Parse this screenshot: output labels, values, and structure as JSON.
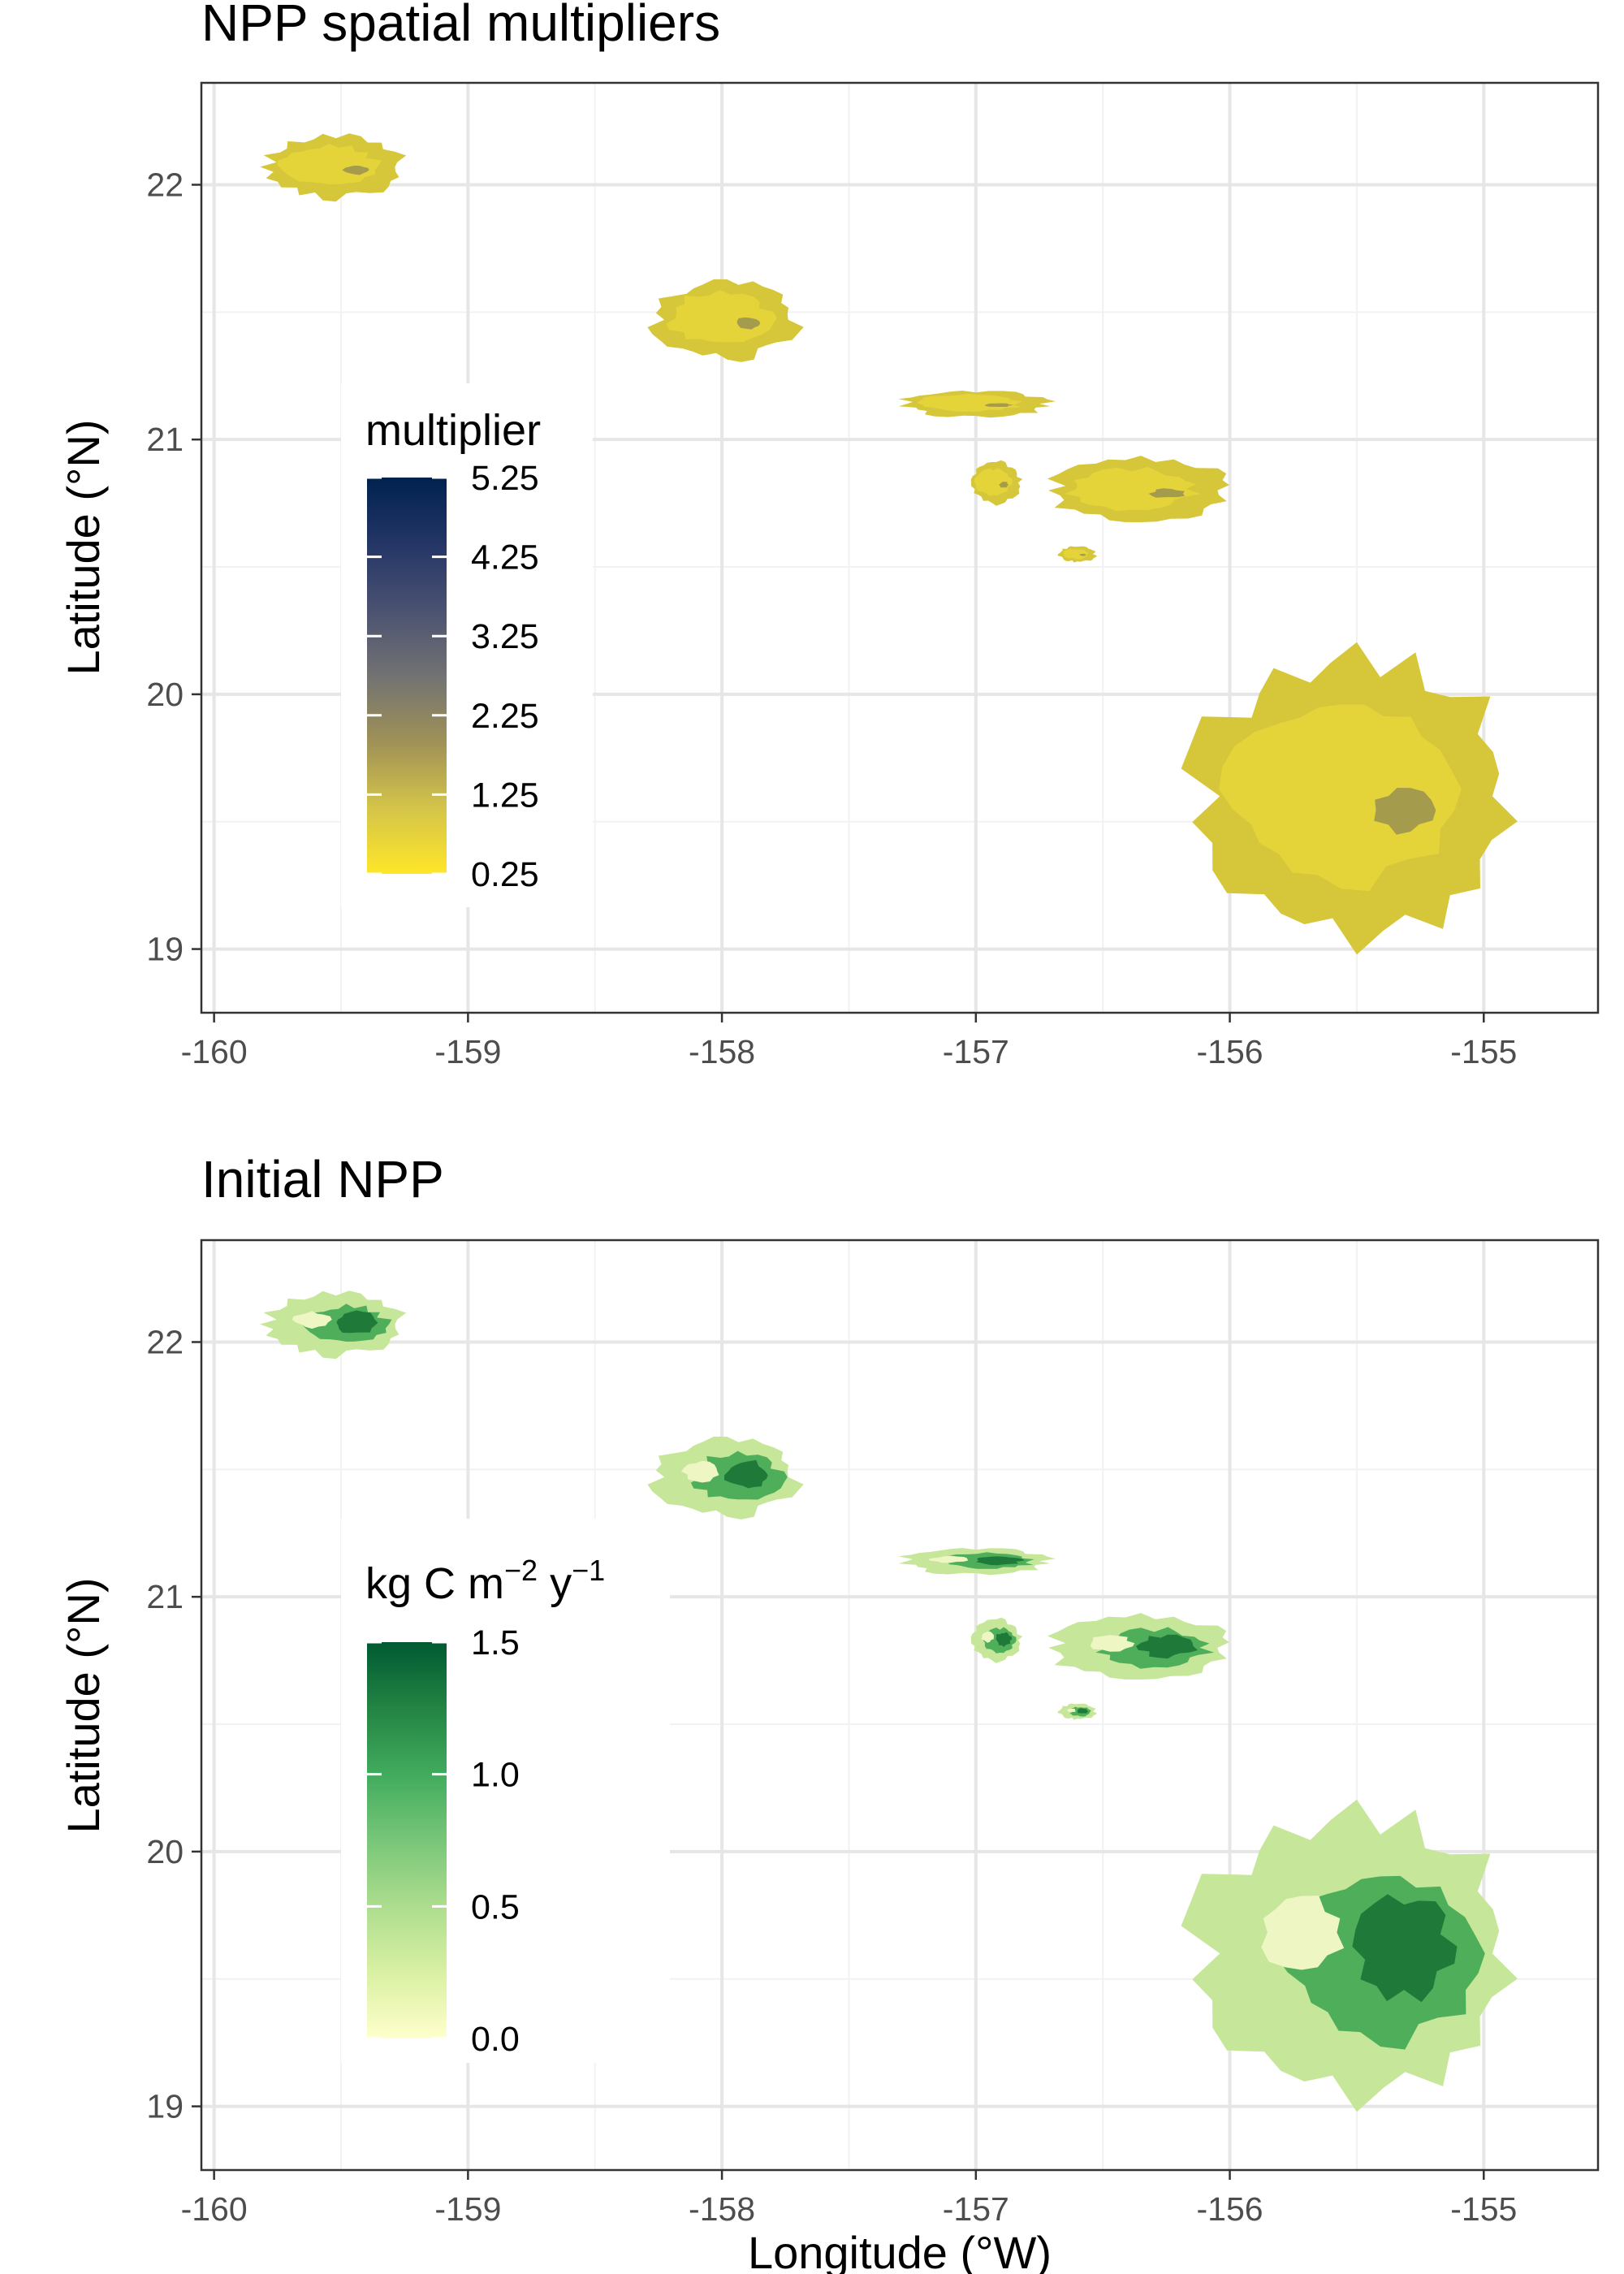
{
  "panels": [
    {
      "id": "multipliers",
      "title": "NPP spatial multipliers",
      "ylabel": "Latitude (°N)",
      "xlabel": "",
      "x_ticks": [
        "-160",
        "-159",
        "-158",
        "-157",
        "-156",
        "-155"
      ],
      "y_ticks": [
        "19",
        "20",
        "21",
        "22"
      ],
      "legend": {
        "title": "multiplier",
        "labels": [
          "5.25",
          "4.25",
          "3.25",
          "2.25",
          "1.25",
          "0.25"
        ],
        "values": [
          5.25,
          4.25,
          3.25,
          2.25,
          1.25,
          0.25
        ],
        "range": [
          0.25,
          5.25
        ],
        "colors": [
          "#ffe629",
          "#d4c44a",
          "#9f9157",
          "#727272",
          "#4a5271",
          "#243566",
          "#00224e"
        ]
      },
      "colors": {
        "land_main": "#d6c63a",
        "land_light": "#e4d43a",
        "land_dark": "#8a8356"
      }
    },
    {
      "id": "initial_npp",
      "title": "Initial NPP",
      "ylabel": "Latitude (°N)",
      "xlabel": "Longitude (°W)",
      "x_ticks": [
        "-160",
        "-159",
        "-158",
        "-157",
        "-156",
        "-155"
      ],
      "y_ticks": [
        "19",
        "20",
        "21",
        "22"
      ],
      "legend": {
        "title_main": "kg C m",
        "title_sup1": "−2",
        "title_mid": " y",
        "title_sup2": "−1",
        "labels": [
          "1.5",
          "1.0",
          "0.5",
          "0.0"
        ],
        "values": [
          1.5,
          1.0,
          0.5,
          0.0
        ],
        "range": [
          0.0,
          1.5
        ],
        "colors": [
          "#ffffcc",
          "#d9f0a3",
          "#addd8e",
          "#78c679",
          "#41ab5d",
          "#238443",
          "#005a32"
        ]
      },
      "colors": {
        "land_dark": "#1f7a3a",
        "land_mid": "#4fae5a",
        "land_light": "#c6e69a",
        "land_pale": "#eef7c4"
      }
    }
  ],
  "map_data": {
    "xlim": [
      -160.05,
      -154.55
    ],
    "ylim": [
      18.75,
      22.4
    ],
    "islands": [
      {
        "name": "Kauai",
        "lon": -159.52,
        "lat": 22.07,
        "rlon": 0.27,
        "rlat": 0.12
      },
      {
        "name": "Oahu",
        "lon": -157.98,
        "lat": 21.47,
        "rlon": 0.28,
        "rlat": 0.15
      },
      {
        "name": "Molokai",
        "lon": -157.0,
        "lat": 21.14,
        "rlon": 0.29,
        "rlat": 0.05
      },
      {
        "name": "Lanai",
        "lon": -156.92,
        "lat": 20.83,
        "rlon": 0.1,
        "rlat": 0.08
      },
      {
        "name": "Maui",
        "lon": -156.35,
        "lat": 20.8,
        "rlon": 0.35,
        "rlat": 0.12
      },
      {
        "name": "Kahoolawe",
        "lon": -156.6,
        "lat": 20.55,
        "rlon": 0.07,
        "rlat": 0.03
      },
      {
        "name": "Hawaii",
        "lon": -155.5,
        "lat": 19.6,
        "rlon": 0.62,
        "rlat": 0.55
      }
    ]
  }
}
